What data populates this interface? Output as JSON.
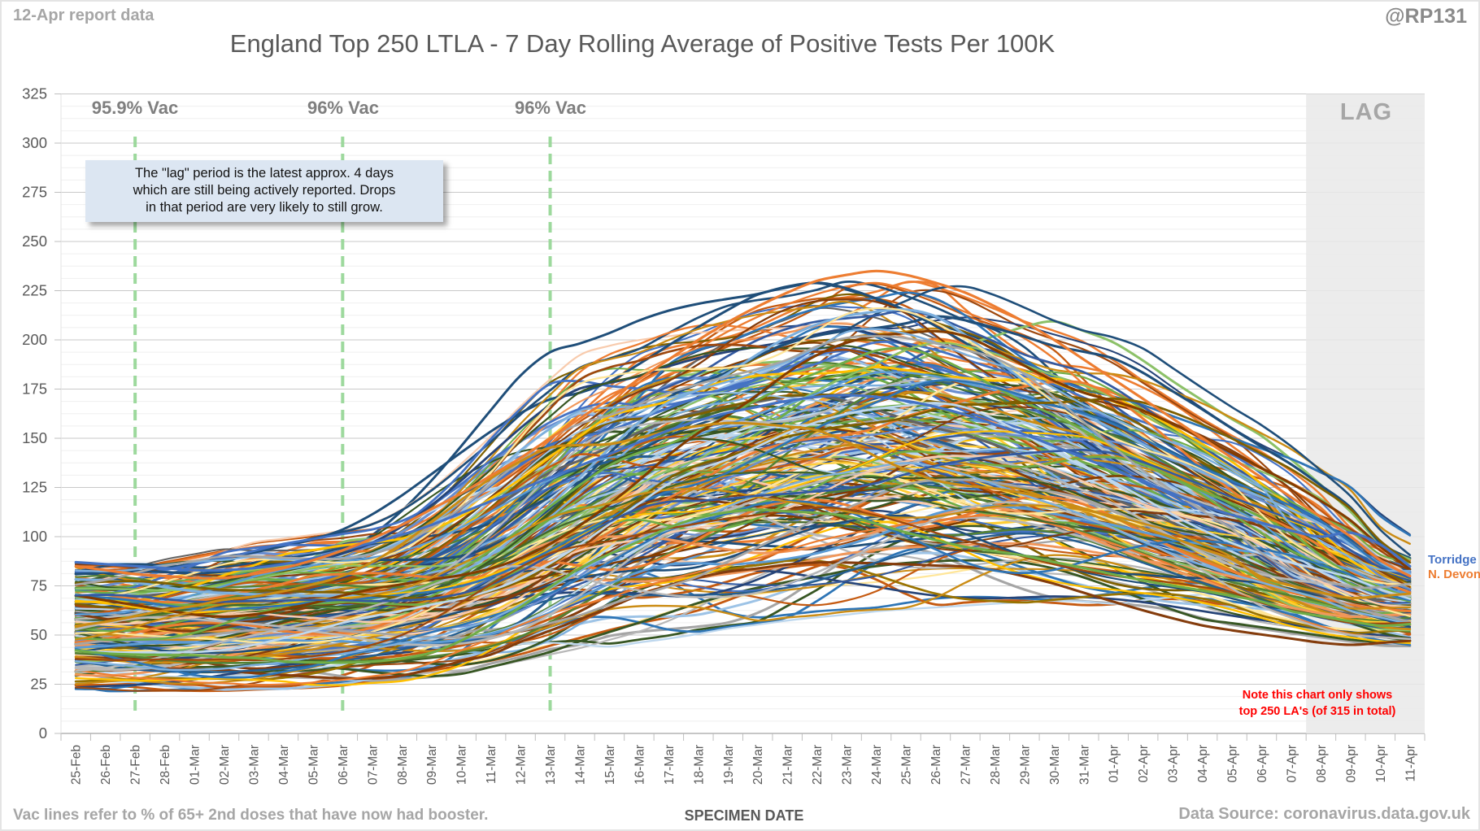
{
  "report_label": "12-Apr report data",
  "handle": "@RP131",
  "title": "England Top 250 LTLA - 7 Day Rolling Average of Positive Tests Per 100K",
  "annotation_box": {
    "lines": [
      "The \"lag\" period is the latest approx. 4 days",
      "which are still being actively reported. Drops",
      "in that period are very likely to still grow."
    ]
  },
  "red_note": {
    "lines": [
      "Note this chart only shows",
      "top 250 LA's (of 315 in total)"
    ],
    "color": "#ff0000"
  },
  "footer": {
    "vac_note": "Vac lines refer to % of 65+ 2nd doses that have now had booster.",
    "xaxis_title": "SPECIMEN DATE",
    "data_source": "Data Source: coronavirus.data.gov.uk"
  },
  "chart_data": {
    "type": "line",
    "title": "England Top 250 LTLA - 7 Day Rolling Average of Positive Tests Per 100K",
    "xlabel": "SPECIMEN DATE",
    "ylabel": "",
    "ylim": [
      0,
      325
    ],
    "yticks": [
      0,
      25,
      50,
      75,
      100,
      125,
      150,
      175,
      200,
      225,
      250,
      275,
      300,
      325
    ],
    "minor_step": 6.25,
    "grid": {
      "major_color": "#c9c9c9",
      "minor_color": "#efefef",
      "axis_color": "#b3b3b3"
    },
    "categories": [
      "25-Feb",
      "26-Feb",
      "27-Feb",
      "28-Feb",
      "01-Mar",
      "02-Mar",
      "03-Mar",
      "04-Mar",
      "05-Mar",
      "06-Mar",
      "07-Mar",
      "08-Mar",
      "09-Mar",
      "10-Mar",
      "11-Mar",
      "12-Mar",
      "13-Mar",
      "14-Mar",
      "15-Mar",
      "16-Mar",
      "17-Mar",
      "18-Mar",
      "19-Mar",
      "20-Mar",
      "21-Mar",
      "22-Mar",
      "23-Mar",
      "24-Mar",
      "25-Mar",
      "26-Mar",
      "27-Mar",
      "28-Mar",
      "29-Mar",
      "30-Mar",
      "31-Mar",
      "01-Apr",
      "02-Apr",
      "03-Apr",
      "04-Apr",
      "05-Apr",
      "06-Apr",
      "07-Apr",
      "08-Apr",
      "09-Apr",
      "10-Apr",
      "11-Apr"
    ],
    "vac_lines": [
      {
        "category": "27-Feb",
        "label": "95.9% Vac",
        "color": "#98d798"
      },
      {
        "category": "06-Mar",
        "label": "96% Vac",
        "color": "#98d798"
      },
      {
        "category": "13-Mar",
        "label": "96% Vac",
        "color": "#98d798"
      }
    ],
    "lag_region": {
      "start_category": "08-Apr",
      "end_category": "11-Apr",
      "label": "LAG",
      "fill": "#e9e9e9"
    },
    "series": [
      {
        "name": "Torridge",
        "color": "#4472C4",
        "values": [
          87,
          86,
          85,
          84,
          83,
          83,
          84,
          86,
          89,
          93,
          97,
          101,
          106,
          112,
          118,
          124,
          130,
          136,
          142,
          148,
          154,
          159,
          163,
          166,
          169,
          171,
          172,
          171,
          169,
          166,
          162,
          157,
          152,
          146,
          140,
          134,
          128,
          122,
          116,
          111,
          107,
          103,
          100,
          102,
          96,
          85
        ]
      },
      {
        "name": "N. Devon",
        "color": "#ED7D31",
        "values": [
          85,
          83,
          81,
          80,
          79,
          79,
          81,
          84,
          88,
          93,
          99,
          106,
          114,
          122,
          131,
          140,
          150,
          160,
          170,
          180,
          190,
          200,
          209,
          217,
          224,
          230,
          233,
          235,
          233,
          229,
          224,
          217,
          209,
          200,
          190,
          180,
          170,
          160,
          150,
          140,
          130,
          120,
          110,
          100,
          88,
          80
        ]
      }
    ],
    "background_series": {
      "count": 248,
      "note": "estimated envelope of the unlabeled top-250 LTLA lines",
      "min_envelope": [
        22,
        22,
        21,
        21,
        21,
        22,
        22,
        23,
        23,
        24,
        25,
        26,
        27,
        28,
        31,
        35,
        38,
        42,
        44,
        46,
        48,
        51,
        53,
        55,
        57,
        58,
        60,
        61,
        62,
        63,
        64,
        65,
        66,
        66,
        65,
        64,
        62,
        60,
        58,
        56,
        54,
        52,
        50,
        48,
        46,
        44
      ],
      "max_envelope": [
        88,
        87,
        86,
        87,
        90,
        93,
        96,
        100,
        101,
        103,
        105,
        108,
        115,
        125,
        138,
        152,
        168,
        182,
        196,
        201,
        205,
        212,
        218,
        222,
        225,
        227,
        230,
        235,
        233,
        228,
        222,
        215,
        210,
        205,
        196,
        185,
        175,
        165,
        156,
        148,
        138,
        128,
        108,
        100,
        92,
        86
      ],
      "palette": [
        "#4472C4",
        "#ED7D31",
        "#A5A5A5",
        "#FFC000",
        "#5B9BD5",
        "#70AD47",
        "#264478",
        "#9E480E",
        "#636363",
        "#997300",
        "#255E91",
        "#43682B",
        "#698ED0",
        "#F1975A",
        "#B7B7B7",
        "#FFCD33",
        "#7CAFDD",
        "#8CC168",
        "#335AA1",
        "#CB8C14",
        "#2E75B6",
        "#548235",
        "#9DC3E6",
        "#F8CBAD",
        "#C55A11",
        "#7F6000",
        "#1F4E79",
        "#833C00",
        "#BDD7EE",
        "#FFE699",
        "#375623",
        "#843C0C"
      ]
    }
  }
}
